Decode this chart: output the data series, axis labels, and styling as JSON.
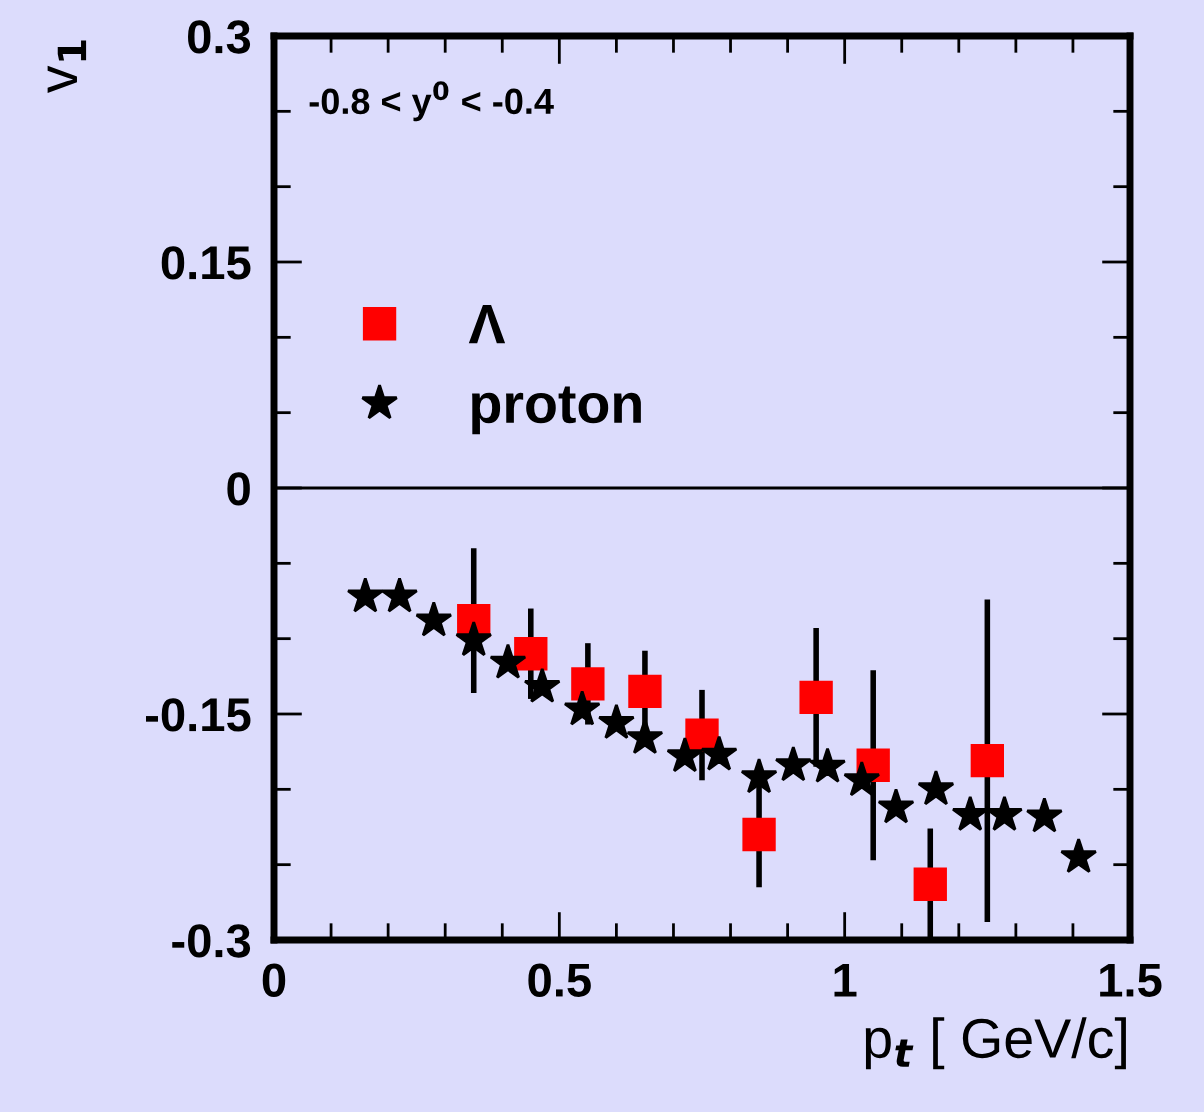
{
  "chart_data": {
    "type": "scatter",
    "xlabel": "p$_{t}$ [ GeV/c]",
    "ylabel": "v$_{1}$",
    "annotations": [
      "-0.8 < y$^{0}$ < -0.4"
    ],
    "xlim": [
      0,
      1.5
    ],
    "ylim": [
      -0.3,
      0.3
    ],
    "xticks": [
      0,
      {
        "value": 0.1,
        "label": null
      },
      {
        "value": 0.2,
        "label": null
      },
      {
        "value": 0.3,
        "label": null
      },
      {
        "value": 0.4,
        "label": null
      },
      0.5,
      {
        "value": 0.6,
        "label": null
      },
      {
        "value": 0.7,
        "label": null
      },
      {
        "value": 0.8,
        "label": null
      },
      {
        "value": 0.9,
        "label": null
      },
      1,
      {
        "value": 1.1,
        "label": null
      },
      {
        "value": 1.2,
        "label": null
      },
      {
        "value": 1.3,
        "label": null
      },
      {
        "value": 1.4,
        "label": null
      },
      1.5
    ],
    "yticks": [
      -0.3,
      {
        "value": -0.25,
        "label": null
      },
      {
        "value": -0.2,
        "label": null
      },
      -0.15,
      {
        "value": -0.1,
        "label": null
      },
      {
        "value": -0.05,
        "label": null
      },
      0,
      {
        "value": 0.05,
        "label": null
      },
      {
        "value": 0.1,
        "label": null
      },
      0.15,
      {
        "value": 0.2,
        "label": null
      },
      {
        "value": 0.25,
        "label": null
      },
      0.3
    ],
    "ref_lines": [
      {
        "axis": "y",
        "value": 0,
        "color": "#000000"
      }
    ],
    "legend": "top left",
    "grid": false,
    "series": [
      {
        "name": "Λ",
        "color": "#ff0000",
        "marker": "square",
        "x": [
          0.35,
          0.45,
          0.55,
          0.65,
          0.75,
          0.85,
          0.95,
          1.05,
          1.15,
          1.25
        ],
        "values": [
          -0.088,
          -0.11,
          -0.13,
          -0.135,
          -0.164,
          -0.23,
          -0.139,
          -0.184,
          -0.263,
          -0.181
        ],
        "errors": [
          0.048,
          0.03,
          0.027,
          0.027,
          0.03,
          0.035,
          0.046,
          0.063,
          0.037,
          0.107
        ]
      },
      {
        "name": "proton",
        "color": "#000000",
        "marker": "star",
        "x": [
          0.16,
          0.22,
          0.28,
          0.35,
          0.41,
          0.47,
          0.54,
          0.6,
          0.65,
          0.72,
          0.78,
          0.85,
          0.91,
          0.97,
          1.03,
          1.09,
          1.16,
          1.22,
          1.28,
          1.35,
          1.41
        ],
        "values": [
          -0.072,
          -0.072,
          -0.088,
          -0.101,
          -0.116,
          -0.132,
          -0.147,
          -0.156,
          -0.166,
          -0.178,
          -0.177,
          -0.192,
          -0.184,
          -0.185,
          -0.194,
          -0.212,
          -0.2,
          -0.217,
          -0.217,
          -0.218,
          -0.245
        ]
      }
    ]
  }
}
